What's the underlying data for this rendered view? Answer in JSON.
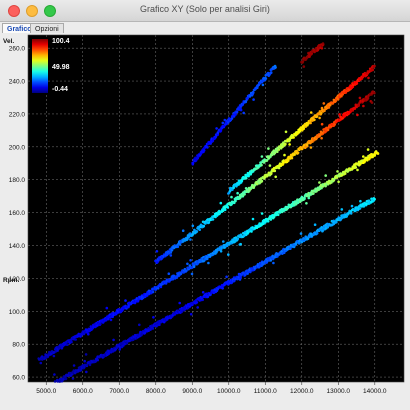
{
  "window": {
    "title": "Grafico XY (Solo per analisi Giri)"
  },
  "tabs": [
    {
      "label": "Grafico",
      "active": true
    },
    {
      "label": "Opzioni",
      "active": false
    }
  ],
  "chart_data": {
    "type": "scatter",
    "ylabel": "Vel.",
    "xlabel_side": "Rpm.",
    "xlim": [
      4500,
      14800
    ],
    "ylim": [
      57,
      268
    ],
    "xticks": [
      "5000.0",
      "6000.0",
      "7000.0",
      "8000.0",
      "9000.0",
      "10000.0",
      "11000.0",
      "12000.0",
      "13000.0",
      "14000.0"
    ],
    "yticks": [
      "60.0",
      "80.0",
      "100.0",
      "120.0",
      "140.0",
      "160.0",
      "180.0",
      "200.0",
      "220.0",
      "240.0",
      "260.0"
    ],
    "grid": true,
    "background": "#000000",
    "color_scale": {
      "labels": [
        "100.4",
        "49.98",
        "-0.44"
      ],
      "min": -0.44,
      "max": 100.4,
      "placement": "top-left"
    },
    "series": [
      {
        "x": [
          6000,
          9000,
          12000
        ],
        "y": [
          66,
          104.5,
          143
        ],
        "c": [
          5,
          10,
          25
        ],
        "x_range": [
          4800,
          14000
        ]
      },
      {
        "x": [
          5000,
          9000,
          13000
        ],
        "y": [
          73,
          127.5,
          182
        ],
        "c": [
          5,
          20,
          55
        ],
        "x_range": [
          4800,
          14100
        ]
      },
      {
        "x": [
          8000,
          10000,
          12000
        ],
        "y": [
          130,
          164.5,
          199
        ],
        "c": [
          15,
          40,
          70
        ],
        "x_range": [
          8000,
          14000
        ]
      },
      {
        "x": [
          10000,
          12000,
          14000
        ],
        "y": [
          173,
          211,
          249
        ],
        "c": [
          30,
          65,
          95
        ],
        "x_range": [
          10000,
          14000
        ]
      },
      {
        "x": [
          9000,
          10000,
          11000
        ],
        "y": [
          190,
          216,
          242
        ],
        "c": [
          10,
          15,
          20
        ],
        "x_range": [
          9000,
          11300
        ]
      },
      {
        "x": [
          12000,
          12300,
          12600
        ],
        "y": [
          252,
          257.5,
          263
        ],
        "c": [
          100,
          98,
          96
        ],
        "x_range": [
          12000,
          12600
        ]
      }
    ]
  }
}
